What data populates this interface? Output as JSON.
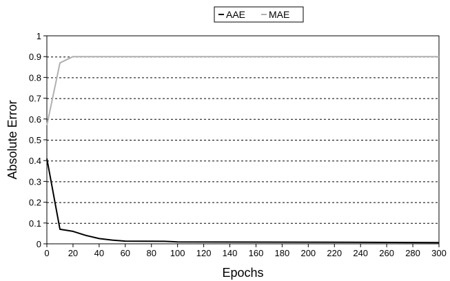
{
  "chart_data": {
    "type": "line",
    "xlabel": "Epochs",
    "ylabel": "Absolute Error",
    "xlim": [
      0,
      300
    ],
    "ylim": [
      0,
      1
    ],
    "xticks": [
      0,
      20,
      40,
      60,
      80,
      100,
      120,
      140,
      160,
      180,
      200,
      220,
      240,
      260,
      280,
      300
    ],
    "yticks": [
      0,
      0.1,
      0.2,
      0.3,
      0.4,
      0.5,
      0.6,
      0.7,
      0.8,
      0.9,
      1
    ],
    "grid": "horizontal dashed",
    "legend_position": "top-center",
    "series": [
      {
        "name": "AAE",
        "color": "#000000",
        "points": [
          [
            0,
            0.41
          ],
          [
            10,
            0.07
          ],
          [
            20,
            0.06
          ],
          [
            30,
            0.04
          ],
          [
            40,
            0.025
          ],
          [
            50,
            0.018
          ],
          [
            60,
            0.013
          ],
          [
            90,
            0.012
          ],
          [
            100,
            0.009
          ],
          [
            200,
            0.008
          ],
          [
            300,
            0.006
          ]
        ]
      },
      {
        "name": "MAE",
        "color": "#b0b0b0",
        "points": [
          [
            0,
            0.57
          ],
          [
            10,
            0.87
          ],
          [
            20,
            0.9
          ],
          [
            300,
            0.9
          ]
        ]
      }
    ]
  }
}
